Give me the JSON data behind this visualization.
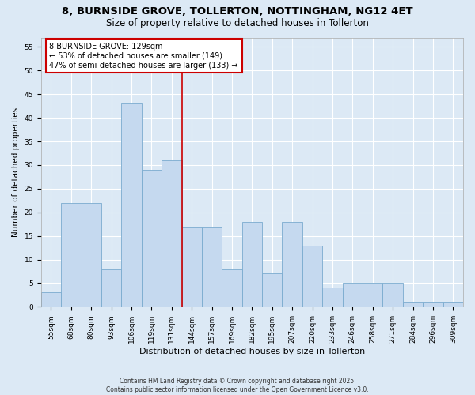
{
  "title1": "8, BURNSIDE GROVE, TOLLERTON, NOTTINGHAM, NG12 4ET",
  "title2": "Size of property relative to detached houses in Tollerton",
  "xlabel": "Distribution of detached houses by size in Tollerton",
  "ylabel": "Number of detached properties",
  "categories": [
    "55sqm",
    "68sqm",
    "80sqm",
    "93sqm",
    "106sqm",
    "119sqm",
    "131sqm",
    "144sqm",
    "157sqm",
    "169sqm",
    "182sqm",
    "195sqm",
    "207sqm",
    "220sqm",
    "233sqm",
    "246sqm",
    "258sqm",
    "271sqm",
    "284sqm",
    "296sqm",
    "309sqm"
  ],
  "values": [
    3,
    22,
    22,
    8,
    43,
    29,
    31,
    17,
    17,
    8,
    18,
    7,
    18,
    13,
    4,
    5,
    5,
    5,
    1,
    1,
    1
  ],
  "bar_color": "#c5d9ef",
  "bar_edge_color": "#7aabcf",
  "vline_color": "#cc0000",
  "vline_pos": 6.5,
  "annotation_text": "8 BURNSIDE GROVE: 129sqm\n← 53% of detached houses are smaller (149)\n47% of semi-detached houses are larger (133) →",
  "annotation_box_color": "#ffffff",
  "annotation_box_edge": "#cc0000",
  "ylim": [
    0,
    57
  ],
  "yticks": [
    0,
    5,
    10,
    15,
    20,
    25,
    30,
    35,
    40,
    45,
    50,
    55
  ],
  "bg_color": "#dce9f5",
  "plot_bg_color": "#dce9f5",
  "footer": "Contains HM Land Registry data © Crown copyright and database right 2025.\nContains public sector information licensed under the Open Government Licence v3.0.",
  "title_fontsize": 9.5,
  "subtitle_fontsize": 8.5,
  "tick_fontsize": 6.5,
  "label_fontsize": 8,
  "annot_fontsize": 7,
  "footer_fontsize": 5.5,
  "ylabel_fontsize": 7.5
}
